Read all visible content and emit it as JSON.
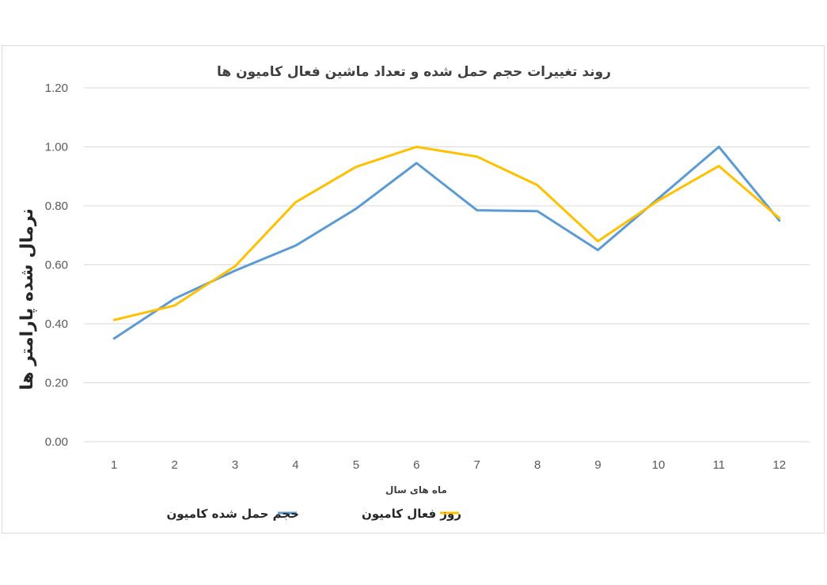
{
  "chart_data": {
    "type": "line",
    "title": "روند تغییرات حجم حمل شده و تعداد ماشین فعال کامیون ها",
    "xlabel": "ماه های سال",
    "ylabel": "نرمال شده پارامتر ها",
    "ylim": [
      0,
      1.2
    ],
    "y_ticks": [
      "0.00",
      "0.20",
      "0.40",
      "0.60",
      "0.80",
      "1.00",
      "1.20"
    ],
    "y_tick_values": [
      0,
      0.2,
      0.4,
      0.6,
      0.8,
      1.0,
      1.2
    ],
    "categories": [
      "1",
      "2",
      "3",
      "4",
      "5",
      "6",
      "7",
      "8",
      "9",
      "10",
      "11",
      "12"
    ],
    "grid": true,
    "legend_position": "bottom",
    "series": [
      {
        "name": "حجم حمل شده کامیون",
        "color": "#5b9bd5",
        "values": [
          0.35,
          0.485,
          0.58,
          0.665,
          0.79,
          0.945,
          0.785,
          0.782,
          0.65,
          0.825,
          1.0,
          0.75
        ]
      },
      {
        "name": "روز فعال کامیون",
        "color": "#ffc000",
        "values": [
          0.413,
          0.462,
          0.595,
          0.812,
          0.932,
          1.0,
          0.967,
          0.87,
          0.68,
          0.818,
          0.935,
          0.758
        ]
      }
    ]
  }
}
